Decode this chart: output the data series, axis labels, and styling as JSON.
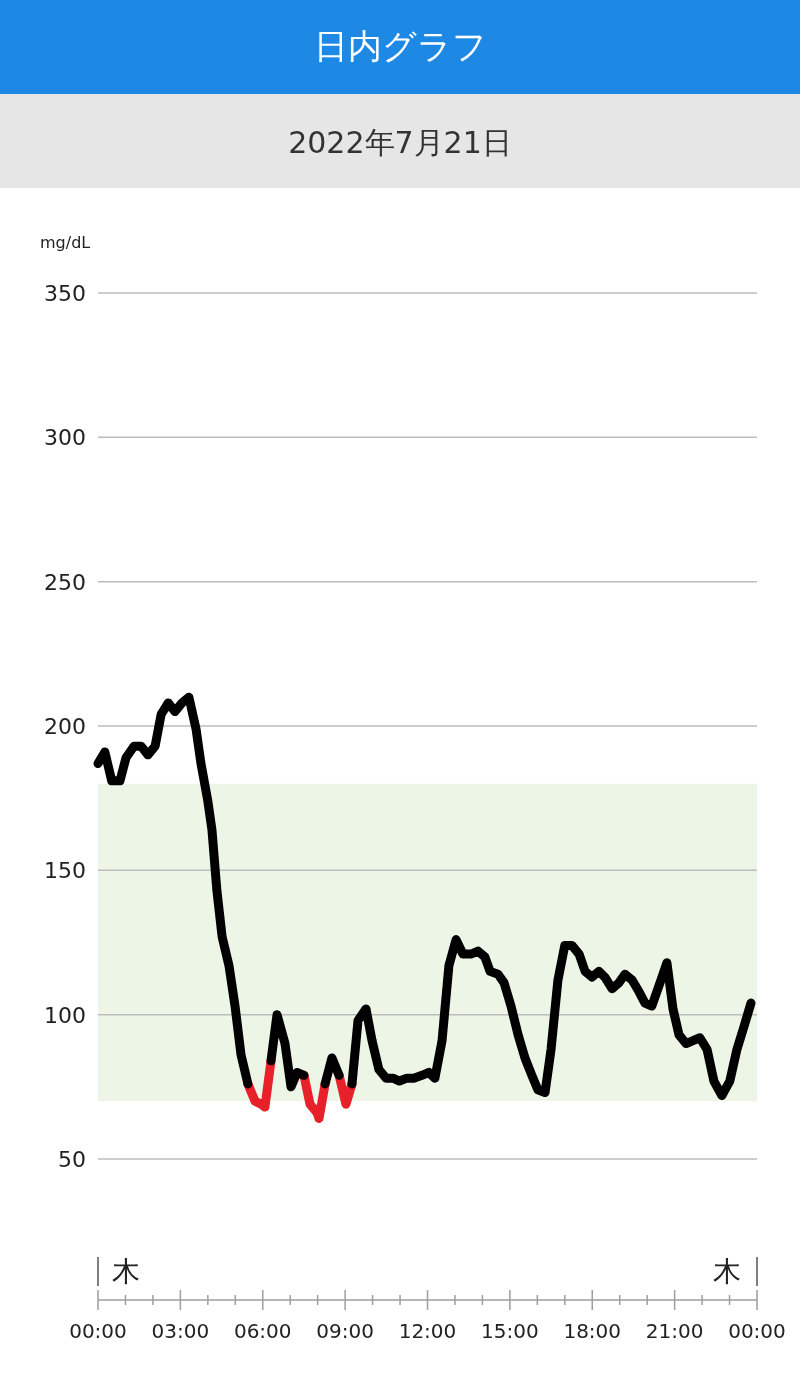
{
  "chart_data": {
    "type": "line",
    "title": "日内グラフ",
    "subtitle": "2022年7月21日",
    "ylabel": "mg/dL",
    "xlim": [
      0,
      24
    ],
    "ylim": [
      50,
      350
    ],
    "yticks": [
      50,
      100,
      150,
      200,
      250,
      300,
      350
    ],
    "xticks": [
      {
        "value": 0,
        "label": "00:00"
      },
      {
        "value": 1,
        "label": null
      },
      {
        "value": 2,
        "label": null
      },
      {
        "value": 3,
        "label": "03:00"
      },
      {
        "value": 4,
        "label": null
      },
      {
        "value": 5,
        "label": null
      },
      {
        "value": 6,
        "label": "06:00"
      },
      {
        "value": 7,
        "label": null
      },
      {
        "value": 8,
        "label": null
      },
      {
        "value": 9,
        "label": "09:00"
      },
      {
        "value": 10,
        "label": null
      },
      {
        "value": 11,
        "label": null
      },
      {
        "value": 12,
        "label": "12:00"
      },
      {
        "value": 13,
        "label": null
      },
      {
        "value": 14,
        "label": null
      },
      {
        "value": 15,
        "label": "15:00"
      },
      {
        "value": 16,
        "label": null
      },
      {
        "value": 17,
        "label": null
      },
      {
        "value": 18,
        "label": "18:00"
      },
      {
        "value": 19,
        "label": null
      },
      {
        "value": 20,
        "label": null
      },
      {
        "value": 21,
        "label": "21:00"
      },
      {
        "value": 22,
        "label": null
      },
      {
        "value": 23,
        "label": null
      },
      {
        "value": 24,
        "label": "00:00"
      }
    ],
    "grid": "y",
    "line_style": "solid",
    "bands": [
      {
        "axis": "y",
        "from": 70,
        "to": 180,
        "color": "#edf5e6"
      }
    ],
    "ref_lines": [
      {
        "axis": "x",
        "value": 0,
        "label": "木"
      },
      {
        "axis": "x",
        "value": 24,
        "label": "木"
      }
    ],
    "series": [
      {
        "color": "#e8202a",
        "x": [
          5.46,
          5.72,
          5.94,
          6.08,
          6.3,
          null,
          7.5,
          7.72,
          7.98,
          8.05,
          8.27,
          null,
          8.78,
          9.03,
          9.25
        ],
        "values": [
          76,
          70,
          69,
          68,
          84,
          null,
          79,
          69,
          66,
          64,
          76,
          null,
          79,
          69,
          76
        ]
      },
      {
        "color": "#000000",
        "x": [
          0,
          0.25,
          0.5,
          0.8,
          1.02,
          1.31,
          1.57,
          1.82,
          2.08,
          2.3,
          2.56,
          2.8,
          3.06,
          3.31,
          3.57,
          3.75,
          4.0,
          4.15,
          4.33,
          4.52,
          4.77,
          4.99,
          5.21,
          5.46,
          5.72,
          5.94,
          6.08,
          6.3,
          6.52,
          6.81,
          7.03,
          7.25,
          7.5,
          7.72,
          7.98,
          8.05,
          8.27,
          8.52,
          8.78,
          9.03,
          9.25,
          9.47,
          9.76,
          9.98,
          10.23,
          10.49,
          10.74,
          10.98,
          11.25,
          11.5,
          11.8,
          12.05,
          12.27,
          12.53,
          12.78,
          13.04,
          13.29,
          13.58,
          13.84,
          14.09,
          14.28,
          14.57,
          14.79,
          15.04,
          15.3,
          15.55,
          15.8,
          16.02,
          16.28,
          16.5,
          16.75,
          17.0,
          17.26,
          17.52,
          17.74,
          17.99,
          18.24,
          18.46,
          18.72,
          18.97,
          19.19,
          19.45,
          19.7,
          19.92,
          20.17,
          20.43,
          20.72,
          20.94,
          21.16,
          21.42,
          21.67,
          21.92,
          22.18,
          22.43,
          22.72,
          23.01,
          23.27,
          23.53,
          23.78
        ],
        "values": [
          187,
          191,
          181,
          181,
          189,
          193,
          193,
          190,
          193,
          204,
          208,
          205,
          208,
          210,
          199,
          187,
          174,
          164,
          143,
          127,
          117,
          103,
          86,
          76,
          null,
          null,
          null,
          84,
          100,
          90,
          75,
          80,
          79,
          null,
          null,
          null,
          76,
          85,
          79,
          null,
          76,
          98,
          102,
          91,
          81,
          78,
          78,
          77,
          78,
          78,
          79,
          80,
          78,
          91,
          117,
          126,
          121,
          121,
          122,
          120,
          115,
          114,
          111,
          103,
          93,
          85,
          79,
          74,
          73,
          88,
          112,
          124,
          124,
          121,
          115,
          113,
          115,
          113,
          109,
          111,
          114,
          112,
          108,
          104,
          103,
          110,
          118,
          102,
          93,
          90,
          91,
          92,
          88,
          77,
          72,
          77,
          88,
          96,
          104
        ]
      }
    ]
  }
}
